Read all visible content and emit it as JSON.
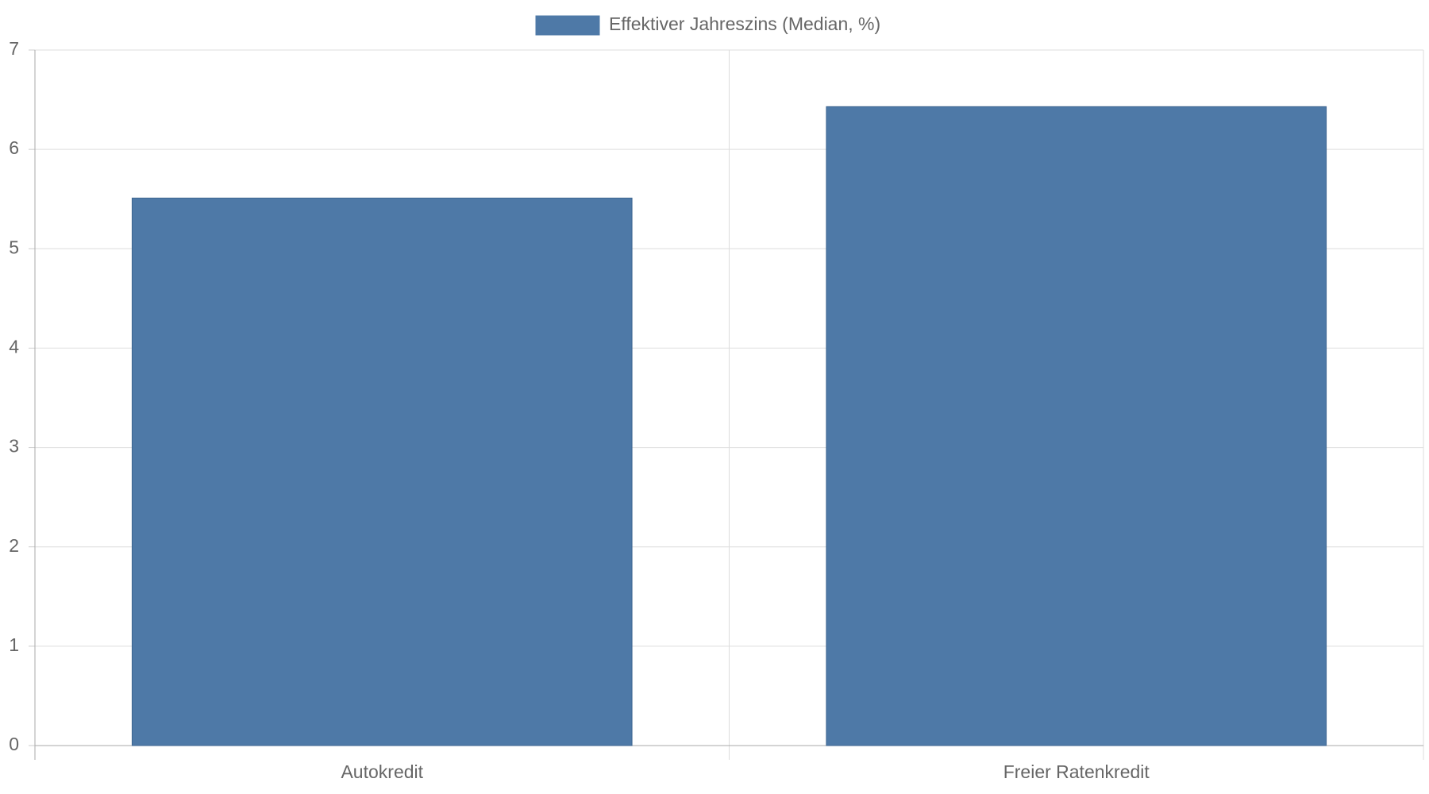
{
  "chart_data": {
    "type": "bar",
    "categories": [
      "Autokredit",
      "Freier Ratenkredit"
    ],
    "series": [
      {
        "name": "Effektiver Jahreszins (Median, %)",
        "color": "#4e79a7",
        "values": [
          5.51,
          6.43
        ]
      }
    ],
    "ylim": [
      0,
      7
    ],
    "yticks": [
      0,
      1,
      2,
      3,
      4,
      5,
      6,
      7
    ],
    "grid": true,
    "legend": "top"
  }
}
